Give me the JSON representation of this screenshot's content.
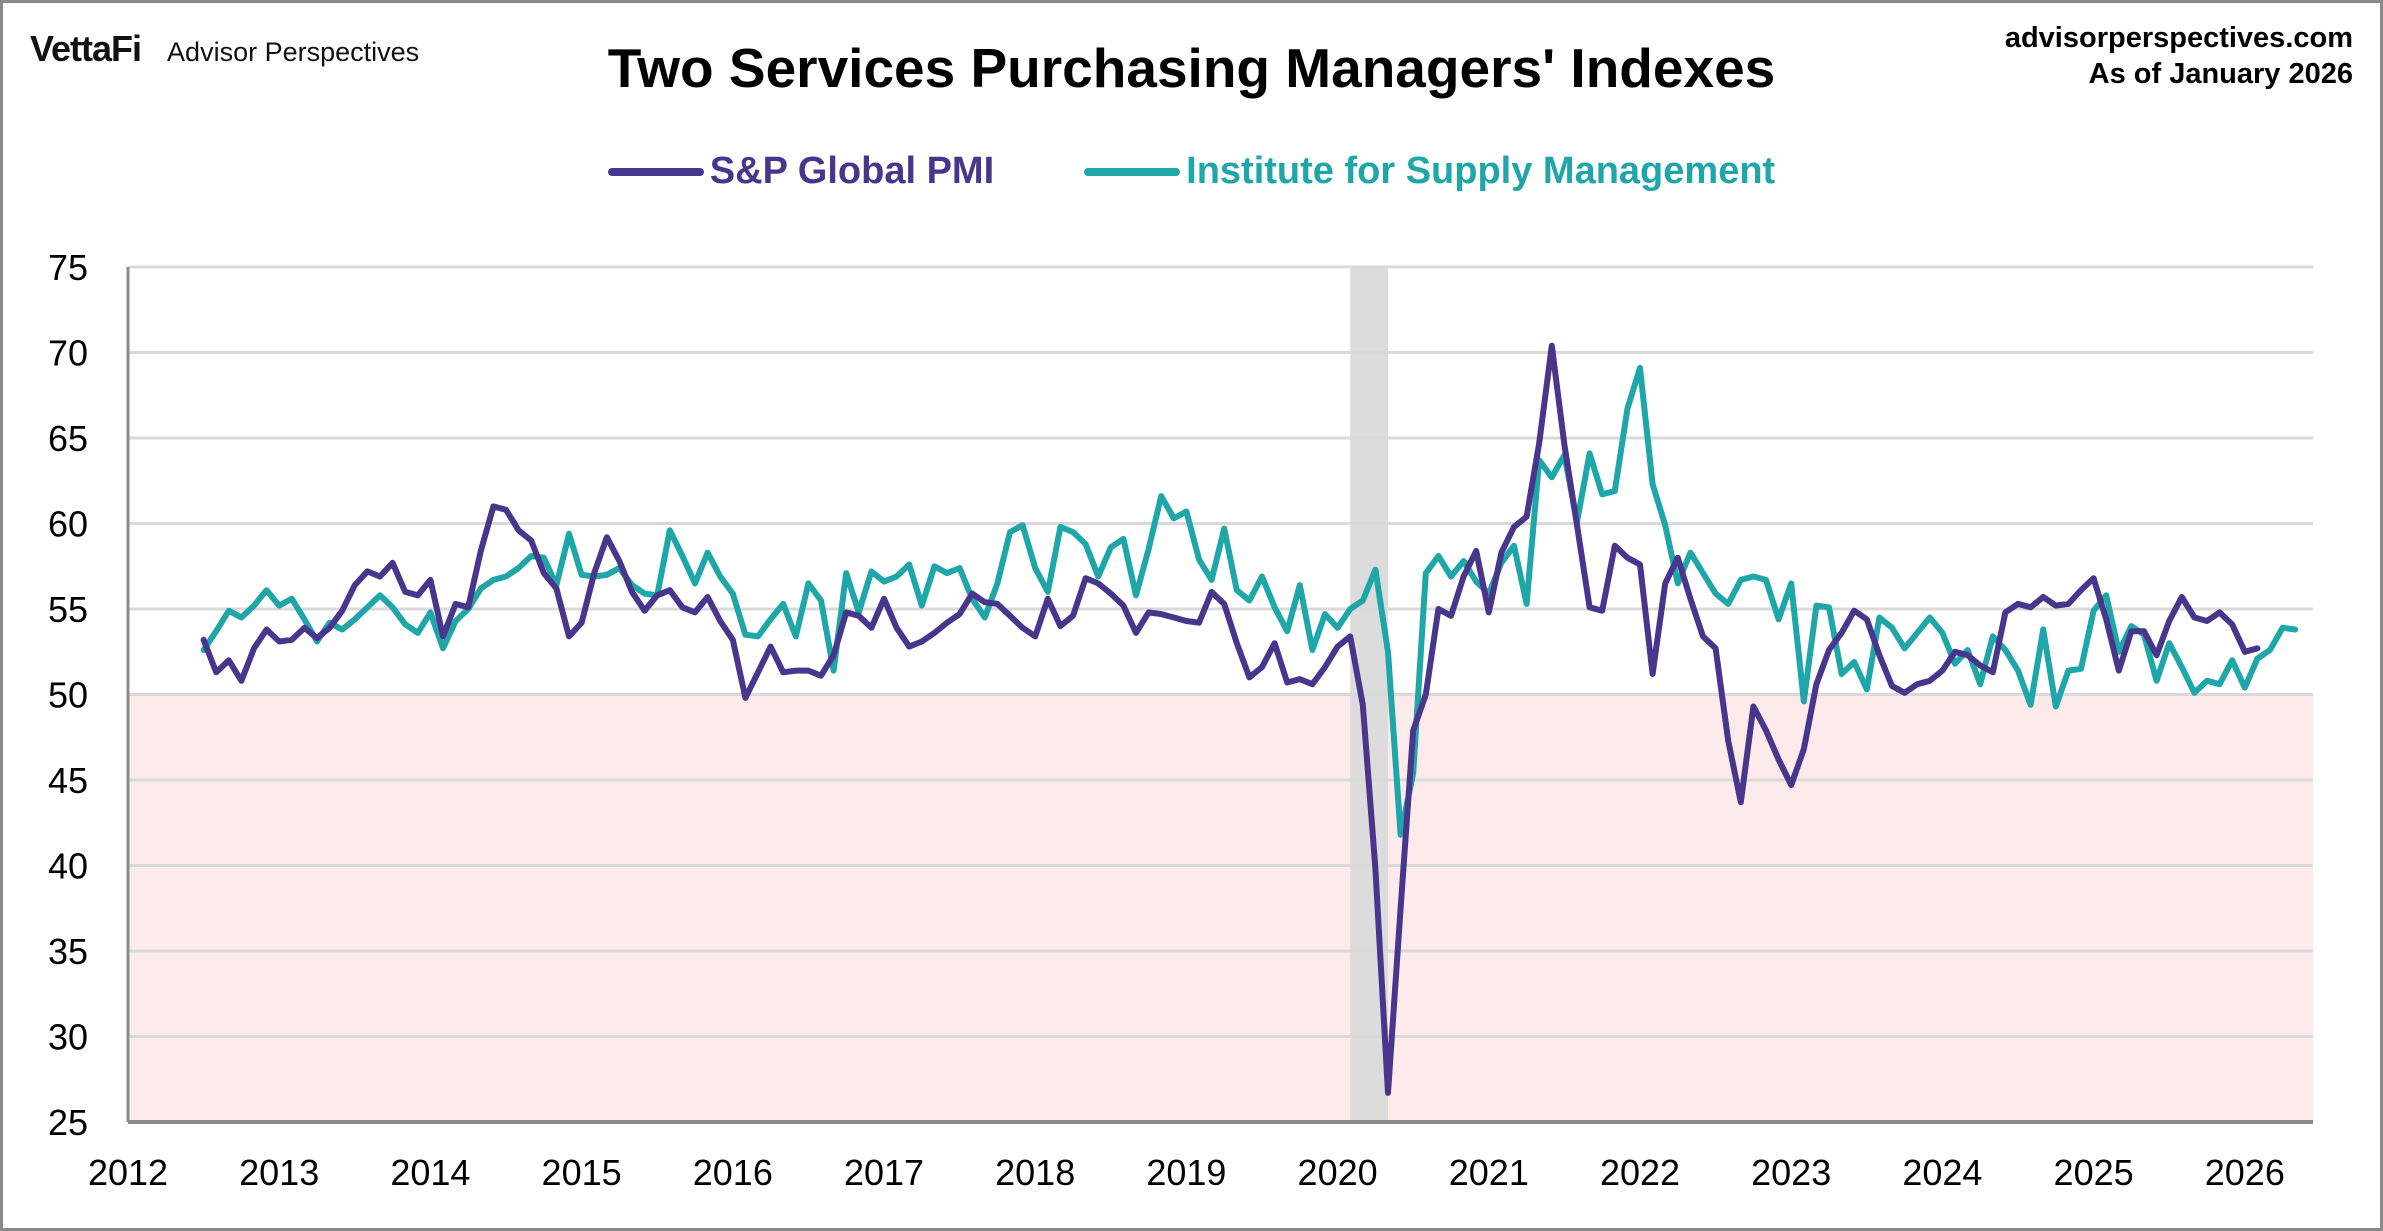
{
  "header": {
    "brand_logo": "VettaFi",
    "brand_name": "Advisor Perspectives",
    "source": "advisorperspectives.com",
    "as_of": "As of January 2026"
  },
  "colors": {
    "sp_global": "#47368c",
    "ism": "#1fa6a8",
    "contraction_band": "#fdeaea",
    "recession_band": "#dcdcdc",
    "gridline": "#d9d9d9",
    "axis": "#8a8a8a"
  },
  "chart_data": {
    "type": "line",
    "title": "Two Services Purchasing Managers' Indexes",
    "xlabel": "",
    "ylabel": "",
    "ylim": [
      25,
      75
    ],
    "yticks": [
      25,
      30,
      35,
      40,
      45,
      50,
      55,
      60,
      65,
      70,
      75
    ],
    "xlim": [
      2012,
      2026.5
    ],
    "xticks": [
      "2012",
      "2013",
      "2014",
      "2015",
      "2016",
      "2017",
      "2018",
      "2019",
      "2020",
      "2021",
      "2022",
      "2023",
      "2024",
      "2025",
      "2026"
    ],
    "grid": true,
    "legend_position": "top-center",
    "shaded_regions": [
      {
        "label": "contraction",
        "y_from": 25,
        "y_to": 50
      },
      {
        "label": "recession",
        "x_from": "2020-02",
        "x_to": "2020-04"
      }
    ],
    "start_month": "2012-07",
    "frequency": "monthly",
    "series": [
      {
        "name": "S&P Global PMI",
        "values": [
          53.2,
          51.3,
          52.0,
          50.8,
          52.7,
          53.8,
          53.1,
          53.2,
          53.9,
          53.3,
          53.9,
          54.9,
          56.4,
          57.2,
          56.9,
          57.7,
          56.0,
          55.8,
          56.7,
          53.4,
          55.3,
          55.1,
          58.4,
          61.0,
          60.8,
          59.6,
          59.0,
          57.1,
          56.2,
          53.4,
          54.2,
          57.1,
          59.2,
          57.8,
          56.0,
          54.9,
          55.8,
          56.1,
          55.1,
          54.8,
          55.7,
          54.3,
          53.2,
          49.8,
          51.3,
          52.8,
          51.3,
          51.4,
          51.4,
          51.1,
          52.3,
          54.8,
          54.6,
          53.9,
          55.6,
          53.9,
          52.8,
          53.1,
          53.6,
          54.2,
          54.7,
          55.9,
          55.4,
          55.3,
          54.6,
          53.9,
          53.4,
          55.6,
          54.0,
          54.6,
          56.8,
          56.5,
          55.9,
          55.2,
          53.6,
          54.8,
          54.7,
          54.5,
          54.3,
          54.2,
          56.0,
          55.3,
          53.0,
          51.0,
          51.6,
          53.0,
          50.7,
          50.9,
          50.6,
          51.6,
          52.8,
          53.4,
          49.4,
          39.8,
          26.7,
          37.5,
          47.9,
          50.0,
          55.0,
          54.6,
          56.9,
          58.4,
          54.8,
          58.3,
          59.8,
          60.4,
          64.7,
          70.4,
          64.6,
          59.9,
          55.1,
          54.9,
          58.7,
          58.0,
          57.6,
          51.2,
          56.5,
          58.0,
          55.6,
          53.4,
          52.7,
          47.3,
          43.7,
          49.3,
          47.9,
          46.2,
          44.7,
          46.8,
          50.6,
          52.6,
          53.6,
          54.9,
          54.4,
          52.3,
          50.5,
          50.1,
          50.6,
          50.8,
          51.4,
          52.5,
          52.3,
          51.7,
          51.3,
          54.8,
          55.3,
          55.1,
          55.7,
          55.2,
          55.3,
          56.1,
          56.8,
          54.4,
          51.4,
          53.7,
          53.7,
          52.3,
          54.3,
          55.7,
          54.5,
          54.3,
          54.8,
          54.1,
          52.5,
          52.7
        ],
        "color": "#47368c"
      },
      {
        "name": "Institute for Supply Management",
        "values": [
          52.6,
          53.7,
          54.9,
          54.5,
          55.2,
          56.1,
          55.2,
          55.6,
          54.4,
          53.1,
          54.2,
          53.8,
          54.4,
          55.1,
          55.8,
          55.1,
          54.1,
          53.6,
          54.8,
          52.7,
          54.3,
          55.0,
          56.2,
          56.7,
          56.9,
          57.4,
          58.1,
          58.0,
          56.4,
          59.4,
          57.0,
          56.9,
          57.0,
          57.4,
          56.4,
          55.9,
          55.8,
          59.6,
          58.1,
          56.5,
          58.3,
          56.9,
          55.9,
          53.5,
          53.4,
          54.4,
          55.3,
          53.4,
          56.5,
          55.5,
          51.4,
          57.1,
          54.8,
          57.2,
          56.6,
          56.9,
          57.6,
          55.2,
          57.5,
          57.1,
          57.4,
          55.6,
          54.5,
          56.5,
          59.5,
          59.9,
          57.4,
          56.0,
          59.8,
          59.5,
          58.8,
          56.9,
          58.6,
          59.1,
          55.8,
          58.5,
          61.6,
          60.3,
          60.7,
          57.9,
          56.7,
          59.7,
          56.1,
          55.5,
          56.9,
          55.1,
          53.7,
          56.4,
          52.6,
          54.7,
          53.9,
          55.0,
          55.5,
          57.3,
          52.5,
          41.8,
          45.4,
          57.1,
          58.1,
          56.9,
          57.8,
          56.6,
          55.9,
          57.7,
          58.7,
          55.3,
          63.7,
          62.7,
          64.0,
          60.1,
          64.1,
          61.7,
          61.9,
          66.7,
          69.1,
          62.3,
          59.9,
          56.5,
          58.3,
          57.1,
          55.9,
          55.3,
          56.7,
          56.9,
          56.7,
          54.4,
          56.5,
          49.6,
          55.2,
          55.1,
          51.2,
          51.9,
          50.3,
          54.5,
          53.9,
          52.7,
          53.6,
          54.5,
          53.6,
          51.8,
          52.6,
          50.6,
          53.4,
          52.6,
          51.4,
          49.4,
          53.8,
          49.3,
          51.4,
          51.5,
          54.9,
          55.8,
          52.5,
          54.0,
          53.5,
          50.8,
          53.0,
          51.6,
          50.1,
          50.8,
          50.6,
          52.0,
          50.4,
          52.1,
          52.6,
          53.9,
          53.8
        ],
        "color": "#1fa6a8"
      }
    ]
  }
}
